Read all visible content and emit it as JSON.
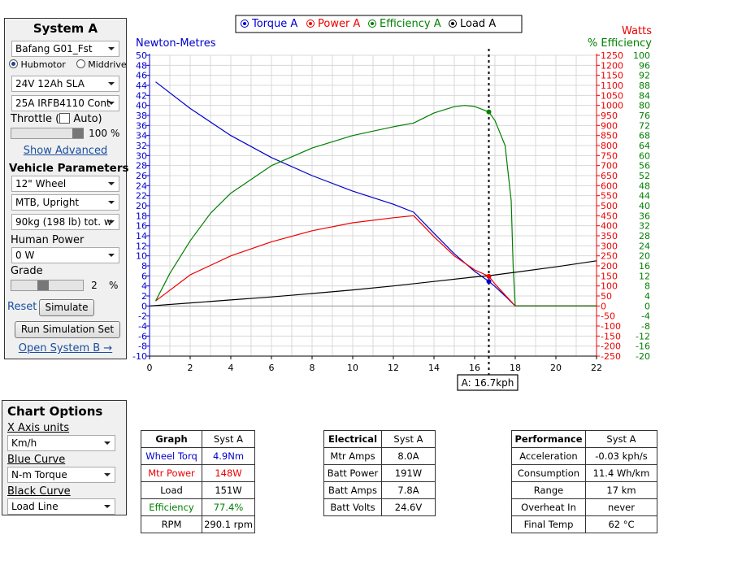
{
  "system_panel": {
    "title": "System A",
    "motor": "Bafang G01_Fst",
    "hubmotor_label": "Hubmotor",
    "middrive_label": "Middrive",
    "battery": "24V 12Ah SLA",
    "controller": "25A IRFB4110 Cont",
    "throttle_label": "Throttle (",
    "auto_label": "Auto)",
    "throttle_value": "100",
    "throttle_unit": "%",
    "show_advanced": "Show Advanced",
    "vehicle_params_heading": "Vehicle Parameters",
    "wheel": "12\"  Wheel",
    "bike_type": "MTB, Upright",
    "weight": "90kg (198 lb) tot. w",
    "human_power_label": "Human Power",
    "human_power": "0 W",
    "grade_label": "Grade",
    "grade_value": "2",
    "grade_unit": "%",
    "reset_label": "Reset",
    "simulate_label": "Simulate",
    "run_set_label": "Run Simulation Set",
    "open_system_b": "Open System B →"
  },
  "chart_options": {
    "title": "Chart Options",
    "x_axis_label": "X Axis units",
    "x_axis_value": "Km/h",
    "blue_label": "Blue Curve",
    "blue_value": "N-m Torque",
    "black_label": "Black Curve",
    "black_value": "Load Line"
  },
  "chart_data": {
    "type": "line",
    "legend": [
      "Torque A",
      "Power A",
      "Efficiency A",
      "Load A"
    ],
    "legend_position": "top",
    "left_axis_label": "Newton-Metres",
    "right_axis_label_1": "Watts",
    "right_axis_label_2": "% Efficiency",
    "x_range": [
      0,
      22
    ],
    "x_ticks": [
      0,
      2,
      4,
      6,
      8,
      10,
      12,
      14,
      16,
      18,
      20,
      22
    ],
    "left_range": [
      -10,
      50
    ],
    "watts_range": [
      -250,
      1250
    ],
    "efficiency_range": [
      -20,
      100
    ],
    "grid": true,
    "cursor_x": 16.7,
    "cursor_label": "A: 16.7kph",
    "colors": {
      "torque": "#0000cc",
      "power": "#ee0000",
      "efficiency": "#008000",
      "load": "#000000"
    },
    "series": [
      {
        "name": "Torque A",
        "axis": "left",
        "x": [
          0.3,
          2,
          4,
          6,
          8,
          10,
          12,
          13,
          14,
          15,
          16,
          16.7,
          17,
          17.5,
          18,
          22
        ],
        "y": [
          44.7,
          39.4,
          34.0,
          29.6,
          26.0,
          22.9,
          20.3,
          18.7,
          14.5,
          10.4,
          6.9,
          4.9,
          3.9,
          2.0,
          0,
          0
        ]
      },
      {
        "name": "Power A",
        "axis": "watts",
        "x": [
          0.3,
          2,
          4,
          6,
          8,
          10,
          12,
          13,
          14,
          15,
          16,
          16.7,
          17,
          17.5,
          18,
          22
        ],
        "y": [
          25,
          155,
          250,
          320,
          375,
          415,
          440,
          450,
          345,
          250,
          180,
          148,
          110,
          55,
          0,
          0
        ]
      },
      {
        "name": "Efficiency A",
        "axis": "efficiency",
        "x": [
          0.3,
          1,
          2,
          3,
          4,
          6,
          8,
          10,
          12,
          13,
          14,
          15,
          15.5,
          16,
          16.7,
          17,
          17.5,
          17.8,
          17.9,
          18,
          22
        ],
        "y": [
          2,
          13,
          26,
          37,
          45,
          56,
          63,
          68,
          71.5,
          73,
          77,
          79.5,
          80,
          79.6,
          77.4,
          74,
          64,
          42,
          15,
          0,
          0
        ]
      },
      {
        "name": "Load A",
        "axis": "watts",
        "x": [
          0,
          2,
          4,
          6,
          8,
          10,
          12,
          14,
          16,
          16.7,
          18,
          20,
          22
        ],
        "y": [
          0,
          15,
          30,
          45,
          62,
          80,
          100,
          122,
          145,
          151,
          168,
          195,
          225
        ]
      }
    ]
  },
  "graph_table": {
    "headers": [
      "Graph",
      "Syst A"
    ],
    "rows": [
      {
        "label": "Wheel Torq",
        "value": "4.9Nm",
        "color": "#0000cc"
      },
      {
        "label": "Mtr Power",
        "value": "148W",
        "color": "#ee0000"
      },
      {
        "label": "Load",
        "value": "151W",
        "color": "#000000"
      },
      {
        "label": "Efficiency",
        "value": "77.4%",
        "color": "#008000"
      },
      {
        "label": "RPM",
        "value": "290.1 rpm",
        "color": "#000000"
      }
    ]
  },
  "electrical_table": {
    "headers": [
      "Electrical",
      "Syst A"
    ],
    "rows": [
      {
        "label": "Mtr Amps",
        "value": "8.0A"
      },
      {
        "label": "Batt Power",
        "value": "191W"
      },
      {
        "label": "Batt Amps",
        "value": "7.8A"
      },
      {
        "label": "Batt Volts",
        "value": "24.6V"
      }
    ]
  },
  "performance_table": {
    "headers": [
      "Performance",
      "Syst A"
    ],
    "rows": [
      {
        "label": "Acceleration",
        "value": "-0.03 kph/s"
      },
      {
        "label": "Consumption",
        "value": "11.4 Wh/km"
      },
      {
        "label": "Range",
        "value": "17 km"
      },
      {
        "label": "Overheat In",
        "value": "never"
      },
      {
        "label": "Final Temp",
        "value": "62 °C"
      }
    ]
  }
}
